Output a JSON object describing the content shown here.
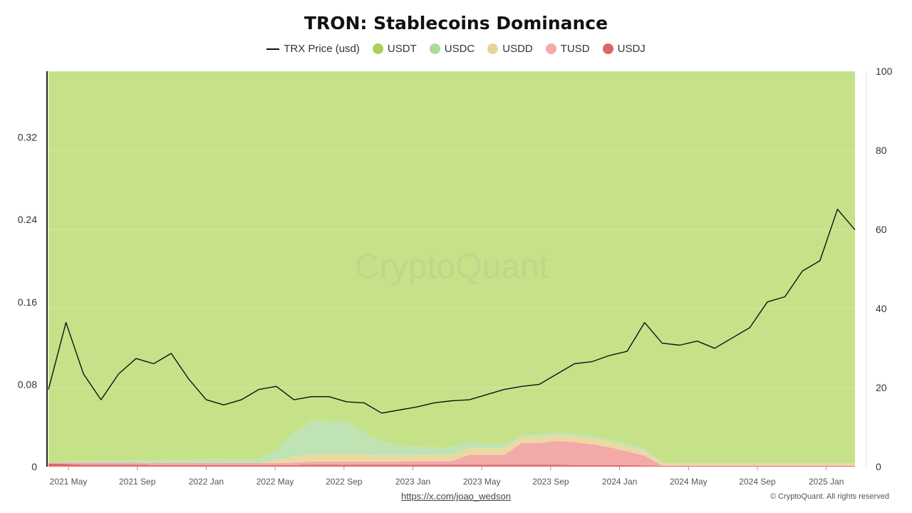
{
  "chart_data": {
    "type": "area",
    "title": "TRON: Stablecoins Dominance",
    "watermark": "CryptoQuant",
    "legend_position": "top-center",
    "grid": true,
    "x_ticks": [
      "2021 May",
      "2021 Sep",
      "2022 Jan",
      "2022 May",
      "2022 Sep",
      "2023 Jan",
      "2023 May",
      "2023 Sep",
      "2024 Jan",
      "2024 May",
      "2024 Sep",
      "2025 Jan"
    ],
    "y_left": {
      "ticks": [
        "0",
        "0.08",
        "0.16",
        "0.24",
        "0.32"
      ],
      "range": [
        0,
        0.384
      ]
    },
    "y_right": {
      "ticks": [
        "0",
        "20",
        "40",
        "60",
        "80",
        "100"
      ],
      "range": [
        0,
        100
      ]
    },
    "x": [
      "2021-04",
      "2021-05",
      "2021-06",
      "2021-07",
      "2021-08",
      "2021-09",
      "2021-10",
      "2021-11",
      "2021-12",
      "2022-01",
      "2022-02",
      "2022-03",
      "2022-04",
      "2022-05",
      "2022-06",
      "2022-07",
      "2022-08",
      "2022-09",
      "2022-10",
      "2022-11",
      "2022-12",
      "2023-01",
      "2023-02",
      "2023-03",
      "2023-04",
      "2023-05",
      "2023-06",
      "2023-07",
      "2023-08",
      "2023-09",
      "2023-10",
      "2023-11",
      "2023-12",
      "2024-01",
      "2024-02",
      "2024-03",
      "2024-04",
      "2024-05",
      "2024-06",
      "2024-07",
      "2024-08",
      "2024-09",
      "2024-10",
      "2024-11",
      "2024-12",
      "2025-01",
      "2025-02"
    ],
    "series": [
      {
        "name": "USDJ",
        "color": "#e06464",
        "axis": "stack",
        "values": [
          0.8,
          0.7,
          0.5,
          0.5,
          0.5,
          0.5,
          0.4,
          0.4,
          0.4,
          0.4,
          0.4,
          0.4,
          0.4,
          0.4,
          0.4,
          0.5,
          0.5,
          0.5,
          0.5,
          0.5,
          0.5,
          0.5,
          0.5,
          0.5,
          0.5,
          0.5,
          0.5,
          0.5,
          0.5,
          0.5,
          0.4,
          0.4,
          0.4,
          0.4,
          0.3,
          0.2,
          0.2,
          0.2,
          0.2,
          0.2,
          0.2,
          0.2,
          0.2,
          0.2,
          0.2,
          0.2,
          0.2
        ]
      },
      {
        "name": "TUSD",
        "color": "#f3aaa9",
        "axis": "stack",
        "values": [
          0.2,
          0.3,
          0.5,
          0.5,
          0.5,
          0.5,
          0.5,
          0.5,
          0.5,
          0.5,
          0.5,
          0.5,
          0.5,
          0.5,
          0.6,
          0.8,
          0.8,
          0.8,
          0.8,
          0.8,
          0.8,
          0.9,
          0.9,
          0.9,
          2.5,
          2.5,
          2.5,
          5.5,
          5.5,
          6.0,
          5.8,
          5.3,
          4.5,
          3.5,
          2.5,
          0.1,
          0.1,
          0.1,
          0.1,
          0.1,
          0.1,
          0.1,
          0.1,
          0.1,
          0.1,
          0.1,
          0.1
        ]
      },
      {
        "name": "USDD",
        "color": "#ead9a2",
        "axis": "stack",
        "values": [
          0.0,
          0.0,
          0.0,
          0.0,
          0.0,
          0.0,
          0.0,
          0.0,
          0.0,
          0.0,
          0.0,
          0.0,
          0.0,
          0.8,
          1.6,
          1.8,
          1.8,
          1.8,
          1.8,
          1.6,
          1.6,
          1.6,
          1.6,
          1.7,
          1.7,
          1.7,
          1.7,
          1.6,
          1.6,
          1.6,
          1.5,
          1.5,
          1.5,
          1.4,
          1.3,
          0.6,
          0.6,
          0.6,
          0.6,
          0.6,
          0.6,
          0.6,
          0.6,
          0.6,
          0.6,
          0.6,
          0.6
        ]
      },
      {
        "name": "USDC",
        "color": "#bfe3b3",
        "axis": "stack",
        "values": [
          0.0,
          0.4,
          0.4,
          0.5,
          0.6,
          0.7,
          0.7,
          0.8,
          0.8,
          0.9,
          1.0,
          1.0,
          1.0,
          2.5,
          6.0,
          8.5,
          8.5,
          8.3,
          5.5,
          3.5,
          2.5,
          2.0,
          1.8,
          1.8,
          1.5,
          1.0,
          0.8,
          0.6,
          0.6,
          0.6,
          0.6,
          0.6,
          0.6,
          0.5,
          0.5,
          0.1,
          0.1,
          0.1,
          0.1,
          0.1,
          0.1,
          0.1,
          0.1,
          0.1,
          0.1,
          0.1,
          0.1
        ]
      },
      {
        "name": "USDT",
        "color": "#c5e289",
        "axis": "stack",
        "values": [
          99.0,
          98.6,
          98.6,
          98.5,
          98.4,
          98.3,
          98.4,
          98.3,
          98.3,
          98.2,
          98.1,
          98.1,
          98.1,
          95.8,
          91.4,
          88.4,
          88.4,
          88.6,
          91.4,
          93.6,
          94.6,
          95.0,
          95.2,
          95.1,
          93.8,
          94.3,
          94.5,
          91.8,
          91.8,
          91.3,
          91.7,
          92.2,
          93.0,
          94.2,
          95.4,
          99.0,
          99.0,
          99.0,
          99.0,
          99.0,
          99.0,
          99.0,
          99.0,
          99.0,
          99.0,
          99.0,
          99.0
        ]
      },
      {
        "name": "TRX Price (usd)",
        "color": "#111111",
        "axis": "left",
        "values": [
          0.075,
          0.14,
          0.09,
          0.065,
          0.09,
          0.105,
          0.1,
          0.11,
          0.085,
          0.065,
          0.06,
          0.065,
          0.075,
          0.078,
          0.065,
          0.068,
          0.068,
          0.063,
          0.062,
          0.052,
          0.055,
          0.058,
          0.062,
          0.064,
          0.065,
          0.07,
          0.075,
          0.078,
          0.08,
          0.09,
          0.1,
          0.102,
          0.108,
          0.112,
          0.14,
          0.12,
          0.118,
          0.122,
          0.115,
          0.125,
          0.135,
          0.16,
          0.165,
          0.19,
          0.2,
          0.25,
          0.23
        ]
      }
    ]
  },
  "footer": {
    "link_text": "https://x.com/joao_wedson",
    "copyright": "© CryptoQuant. All rights reserved"
  }
}
